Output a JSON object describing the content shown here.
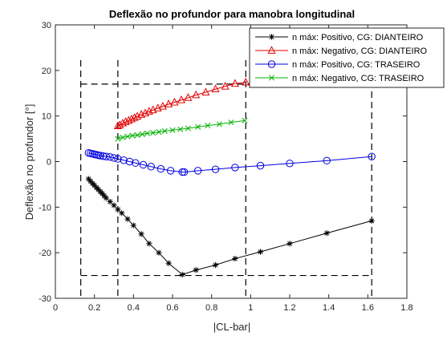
{
  "chart_data": {
    "type": "line",
    "title": "Deflexão no profundor para manobra longitudinal",
    "xlabel": "|CL-bar|",
    "ylabel": "Deflexão no profundor [°]",
    "xlim": [
      0,
      1.8
    ],
    "ylim": [
      -30,
      30
    ],
    "xticks": [
      0,
      0.2,
      0.4,
      0.6,
      0.8,
      1,
      1.2,
      1.4,
      1.6,
      1.8
    ],
    "xtick_labels": [
      "0",
      "0.2",
      "0.4",
      "0.6",
      "0.8",
      "1",
      "1.2",
      "1.4",
      "1.6",
      "1.8"
    ],
    "yticks": [
      -30,
      -20,
      -10,
      0,
      10,
      20,
      30
    ],
    "ytick_labels": [
      "-30",
      "-20",
      "-10",
      "0",
      "10",
      "20",
      "30"
    ],
    "grid": false,
    "legend_position": "top-right",
    "series": [
      {
        "name": "n máx: Positivo, CG: DIANTEIRO",
        "color": "#000000",
        "marker": "asterisk",
        "x": [
          0.17,
          0.18,
          0.19,
          0.2,
          0.21,
          0.22,
          0.23,
          0.24,
          0.25,
          0.26,
          0.28,
          0.3,
          0.32,
          0.34,
          0.37,
          0.4,
          0.44,
          0.48,
          0.53,
          0.58,
          0.65,
          0.72,
          0.82,
          0.92,
          1.05,
          1.2,
          1.39,
          1.62
        ],
        "y": [
          -3.8,
          -4.3,
          -4.8,
          -5.2,
          -5.7,
          -6.1,
          -6.6,
          -7.0,
          -7.5,
          -8.0,
          -8.8,
          -9.6,
          -10.5,
          -11.3,
          -12.6,
          -14.0,
          -15.9,
          -18.0,
          -20.0,
          -22.3,
          -24.8,
          -23.8,
          -22.7,
          -21.3,
          -19.8,
          -18.0,
          -15.7,
          -13.0
        ]
      },
      {
        "name": "n máx: Negativo, CG: DIANTEIRO",
        "color": "#e10000",
        "marker": "triangle",
        "x": [
          0.32,
          0.33,
          0.345,
          0.36,
          0.375,
          0.39,
          0.405,
          0.42,
          0.44,
          0.46,
          0.48,
          0.5,
          0.525,
          0.55,
          0.58,
          0.61,
          0.645,
          0.68,
          0.72,
          0.77,
          0.82,
          0.87,
          0.92,
          0.975
        ],
        "y": [
          7.8,
          8.0,
          8.4,
          8.7,
          9.0,
          9.3,
          9.6,
          9.9,
          10.3,
          10.6,
          11.0,
          11.3,
          11.7,
          12.1,
          12.6,
          13.0,
          13.5,
          14.0,
          14.6,
          15.2,
          15.9,
          16.5,
          17.1,
          17.4
        ]
      },
      {
        "name": "n máx: Positivo, CG: TRASEIRO",
        "color": "#0000e0",
        "marker": "circle",
        "x": [
          0.17,
          0.18,
          0.19,
          0.2,
          0.21,
          0.22,
          0.23,
          0.245,
          0.26,
          0.28,
          0.3,
          0.32,
          0.35,
          0.38,
          0.41,
          0.45,
          0.49,
          0.54,
          0.59,
          0.65,
          0.66,
          0.73,
          0.82,
          0.92,
          1.05,
          1.2,
          1.39,
          1.62
        ],
        "y": [
          1.9,
          1.8,
          1.7,
          1.6,
          1.5,
          1.4,
          1.3,
          1.2,
          1.1,
          1.0,
          0.8,
          0.6,
          0.3,
          0.0,
          -0.3,
          -0.7,
          -1.1,
          -1.6,
          -2.0,
          -2.3,
          -2.3,
          -2.0,
          -1.7,
          -1.3,
          -0.9,
          -0.4,
          0.2,
          1.1
        ]
      },
      {
        "name": "n máx: Negativo, CG: TRASEIRO",
        "color": "#00b000",
        "marker": "x",
        "x": [
          0.32,
          0.345,
          0.37,
          0.395,
          0.42,
          0.445,
          0.47,
          0.5,
          0.53,
          0.56,
          0.6,
          0.64,
          0.68,
          0.73,
          0.78,
          0.84,
          0.9,
          0.97
        ],
        "y": [
          5.0,
          5.3,
          5.5,
          5.7,
          5.8,
          6.0,
          6.2,
          6.3,
          6.5,
          6.7,
          6.9,
          7.1,
          7.3,
          7.6,
          7.9,
          8.2,
          8.6,
          9.0
        ]
      }
    ],
    "reference_lines": {
      "vertical_x": [
        0.13,
        0.32,
        0.975,
        1.62
      ],
      "horizontal_y": [
        -25,
        17
      ],
      "style": "dashed",
      "color": "#000000"
    }
  }
}
